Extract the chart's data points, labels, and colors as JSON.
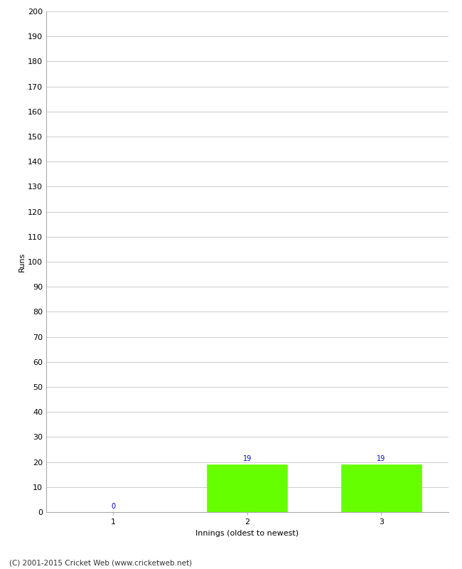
{
  "categories": [
    1,
    2,
    3
  ],
  "values": [
    0,
    19,
    19
  ],
  "bar_color": "#66ff00",
  "bar_edge_color": "#66ff00",
  "ylabel": "Runs",
  "xlabel": "Innings (oldest to newest)",
  "ylim": [
    0,
    200
  ],
  "ytick_step": 10,
  "annotation_color": "#0000cc",
  "annotation_fontsize": 7,
  "footer": "(C) 2001-2015 Cricket Web (www.cricketweb.net)",
  "background_color": "#ffffff",
  "grid_color": "#cccccc",
  "tick_label_fontsize": 8,
  "ylabel_fontsize": 8,
  "xlabel_fontsize": 8,
  "footer_fontsize": 7.5,
  "bar_width": 0.6
}
